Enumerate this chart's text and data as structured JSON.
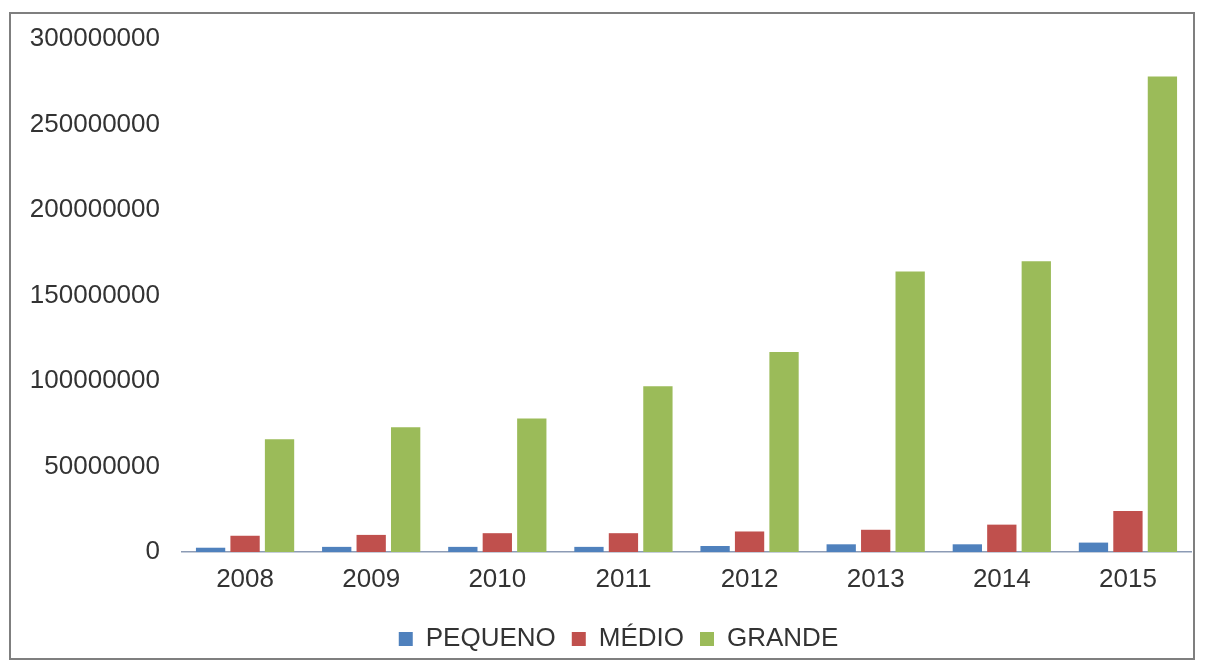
{
  "chart_data": {
    "type": "bar",
    "categories": [
      "2008",
      "2009",
      "2010",
      "2011",
      "2012",
      "2013",
      "2014",
      "2015"
    ],
    "series": [
      {
        "name": "PEQUENO",
        "color": "#4f81bd",
        "values": [
          2500000,
          3000000,
          3000000,
          3000000,
          3500000,
          4500000,
          4500000,
          5500000
        ]
      },
      {
        "name": "MÉDIO",
        "color": "#c0504d",
        "values": [
          9500000,
          10000000,
          11000000,
          11000000,
          12000000,
          13000000,
          16000000,
          24000000
        ]
      },
      {
        "name": "GRANDE",
        "color": "#9bbb59",
        "values": [
          66000000,
          73000000,
          78000000,
          97000000,
          117000000,
          164000000,
          170000000,
          278000000
        ]
      }
    ],
    "ylim": [
      0,
      300000000
    ],
    "yticks": [
      0,
      50000000,
      100000000,
      150000000,
      200000000,
      250000000,
      300000000
    ],
    "grid": false,
    "legend": "bottom"
  }
}
